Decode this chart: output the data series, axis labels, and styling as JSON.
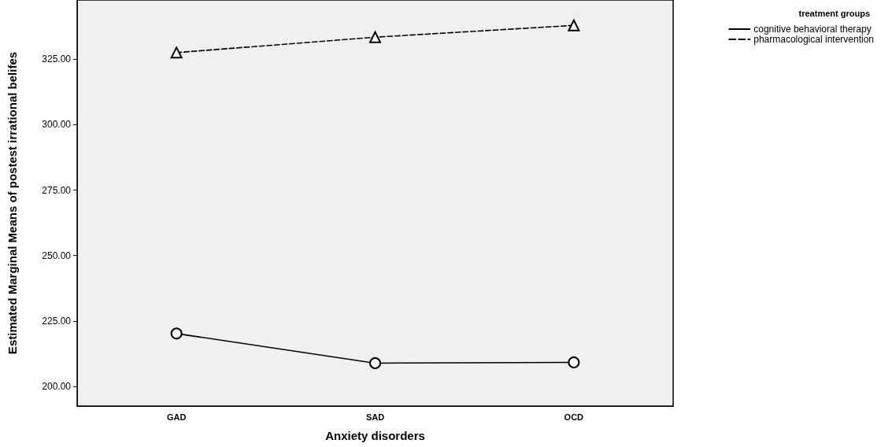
{
  "chart_data": {
    "type": "line",
    "xlabel": "Anxiety disorders",
    "ylabel": "Estimated Marginal Means of postest irrational belifes",
    "legend_title": "treatment groups",
    "legend": "top right",
    "categories": [
      "GAD",
      "SAD",
      "OCD"
    ],
    "series": [
      {
        "name": "cognitive behavioral therapy",
        "color": "#000000",
        "values": [
          220.2,
          208.9,
          209.2
        ],
        "marker": "circle",
        "line_style": "solid"
      },
      {
        "name": "pharmacological intervention",
        "color": "#000000",
        "values": [
          327.5,
          333.4,
          337.9
        ],
        "marker": "triangle",
        "line_style": "dashed"
      }
    ],
    "ylim": [
      192.5,
      347.6
    ],
    "yticks": [
      {
        "value": 200,
        "label": "200.00"
      },
      {
        "value": 225,
        "label": "225.00"
      },
      {
        "value": 250,
        "label": "250.00"
      },
      {
        "value": 275,
        "label": "275.00"
      },
      {
        "value": 300,
        "label": "300.00"
      },
      {
        "value": 325,
        "label": "325.00"
      }
    ],
    "grid": false
  }
}
